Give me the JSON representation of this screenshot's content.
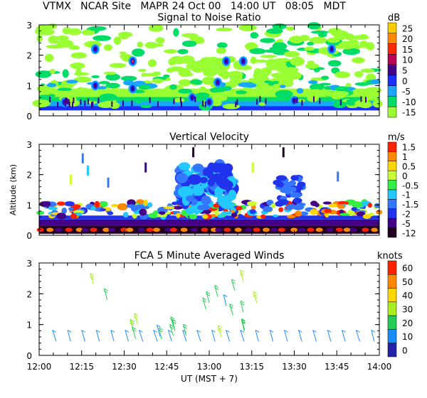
{
  "header": {
    "site": "VTMX",
    "location": "NCAR Site",
    "instrument": "MAPR",
    "date": "24 Oct 00",
    "ut_time": "14:00 UT",
    "local_time": "08:05",
    "tz": "MDT"
  },
  "chart_data": [
    {
      "type": "heatmap",
      "title": "Signal to Noise Ratio",
      "xlabel": "",
      "ylabel": "",
      "xlim": [
        "12:00",
        "14:00"
      ],
      "ylim": [
        0,
        3
      ],
      "yticks": [
        "0",
        "1",
        "2",
        "3"
      ],
      "colorbar": {
        "unit": "dB",
        "levels": [
          "25",
          "20",
          "15",
          "10",
          "5",
          "0",
          "-5",
          "-10",
          "-15"
        ],
        "colors": [
          "#ffcc00",
          "#ff8800",
          "#ff2a00",
          "#bb0055",
          "#440088",
          "#1a2fff",
          "#19a6ff",
          "#00dd66",
          "#99ff33"
        ]
      }
    },
    {
      "type": "heatmap",
      "title": "Vertical Velocity",
      "xlabel": "",
      "ylabel": "Altitude (km)",
      "xlim": [
        "12:00",
        "14:00"
      ],
      "ylim": [
        0,
        3
      ],
      "yticks": [
        "0",
        "1",
        "2",
        "3"
      ],
      "colorbar": {
        "unit": "m/s",
        "levels": [
          "1.5",
          "1",
          "0.5",
          "0",
          "-0.5",
          "-1",
          "-1.5",
          "-2",
          "-5",
          "-12"
        ],
        "colors": [
          "#ff2200",
          "#ff8800",
          "#ffd700",
          "#ccff33",
          "#33ee44",
          "#22c8ff",
          "#3377ff",
          "#2233ee",
          "#440088",
          "#220022"
        ]
      }
    },
    {
      "type": "scatter",
      "title": "FCA 5 Minute Averaged Winds",
      "xlabel": "UT  (MST + 7)",
      "ylabel": "",
      "xlim": [
        "12:00",
        "14:00"
      ],
      "ylim": [
        0,
        3
      ],
      "yticks": [
        "0",
        "1",
        "2",
        "3"
      ],
      "xticks": [
        "12:00",
        "12:15",
        "12:30",
        "12:45",
        "13:00",
        "13:15",
        "13:30",
        "13:45",
        "14:00"
      ],
      "colorbar": {
        "unit": "knots",
        "levels": [
          "60",
          "50",
          "40",
          "30",
          "20",
          "10",
          "0"
        ],
        "colors": [
          "#ff2200",
          "#ff8800",
          "#ffd700",
          "#aaee22",
          "#22cc55",
          "#1a8cff",
          "#2222aa"
        ]
      }
    }
  ]
}
